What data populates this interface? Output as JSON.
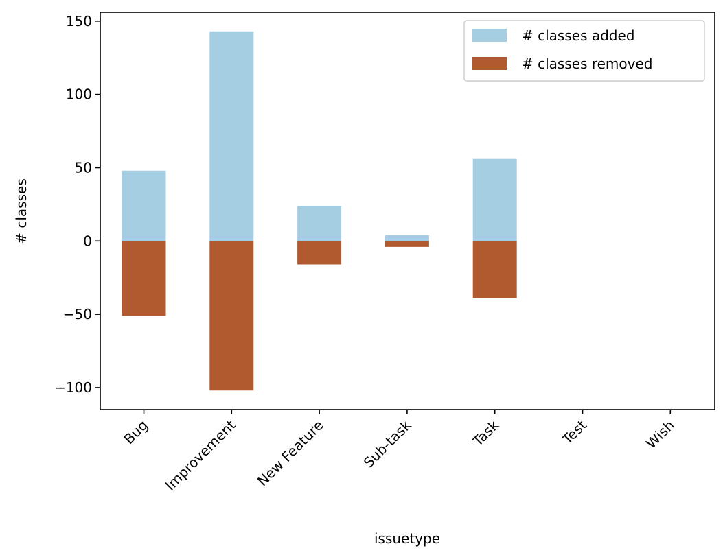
{
  "chart_data": {
    "type": "bar",
    "stacked": "diverging",
    "xlabel": "issuetype",
    "ylabel": "# classes",
    "categories": [
      "Bug",
      "Improvement",
      "New Feature",
      "Sub-task",
      "Task",
      "Test",
      "Wish"
    ],
    "series": [
      {
        "name": "# classes added",
        "color": "#a6cee3",
        "values": [
          48,
          143,
          24,
          4,
          56,
          0,
          0
        ]
      },
      {
        "name": "# classes removed",
        "color": "#b15a2f",
        "values": [
          -51,
          -102,
          -16,
          -4,
          -39,
          0,
          0
        ]
      }
    ],
    "ylim": [
      -115,
      156
    ],
    "yticks": [
      -100,
      -50,
      0,
      50,
      100,
      150
    ],
    "ytick_labels": [
      "−100",
      "−50",
      "0",
      "50",
      "100",
      "150"
    ],
    "legend_position": "top-right",
    "grid": false
  }
}
